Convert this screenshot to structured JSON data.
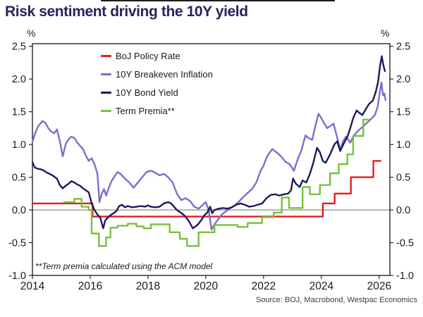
{
  "page": {
    "title": "Risk sentiment driving the 10Y yield",
    "footnote": "**Term premia calculated using the ACM model",
    "source": "Source: BOJ, Macrobond, Westpac Economics"
  },
  "colors": {
    "title": "#29235c",
    "boj_policy_rate": "#e01f1f",
    "breakeven_inflation": "#7b6fcb",
    "bond_yield": "#1f1a5e",
    "term_premia": "#78c03c",
    "zero_line": "#7f7f7f",
    "frame": "#000000",
    "tick_text": "#1a1a1a"
  },
  "chart_data": {
    "type": "line",
    "title": "Risk sentiment driving the 10Y yield",
    "xlabel": "",
    "ylabel": "%",
    "y_unit_left": "%",
    "y_unit_right": "%",
    "x_range": [
      2014,
      2026.37
    ],
    "y_range": [
      -1.0,
      2.54
    ],
    "x_ticks": [
      2014,
      2016,
      2018,
      2020,
      2022,
      2024,
      2026
    ],
    "y_ticks": [
      -1.0,
      -0.5,
      0.0,
      0.5,
      1.0,
      1.5,
      2.0,
      2.5
    ],
    "grid": false,
    "zero_line": 0,
    "legend_position": "top-left-inside",
    "annotations": [
      "**Term premia calculated using the ACM model"
    ],
    "series": [
      {
        "name": "BoJ Policy Rate",
        "color": "#e01f1f",
        "step": true,
        "points": [
          [
            2014.0,
            0.1
          ],
          [
            2016.08,
            -0.1
          ],
          [
            2024.05,
            0.1
          ],
          [
            2024.46,
            0.25
          ],
          [
            2025.02,
            0.5
          ],
          [
            2025.8,
            0.75
          ],
          [
            2026.05,
            0.75
          ]
        ]
      },
      {
        "name": "10Y Breakeven Inflation",
        "color": "#7b6fcb",
        "step": false,
        "points": [
          [
            2014.0,
            1.04
          ],
          [
            2014.1,
            1.18
          ],
          [
            2014.2,
            1.28
          ],
          [
            2014.35,
            1.36
          ],
          [
            2014.45,
            1.33
          ],
          [
            2014.55,
            1.25
          ],
          [
            2014.65,
            1.2
          ],
          [
            2014.75,
            1.17
          ],
          [
            2014.85,
            1.23
          ],
          [
            2014.95,
            1.05
          ],
          [
            2015.05,
            0.82
          ],
          [
            2015.15,
            1.0
          ],
          [
            2015.25,
            1.08
          ],
          [
            2015.35,
            1.12
          ],
          [
            2015.45,
            1.1
          ],
          [
            2015.55,
            1.03
          ],
          [
            2015.65,
            0.98
          ],
          [
            2015.75,
            0.93
          ],
          [
            2015.85,
            0.83
          ],
          [
            2015.95,
            0.75
          ],
          [
            2016.05,
            0.79
          ],
          [
            2016.15,
            0.7
          ],
          [
            2016.25,
            0.55
          ],
          [
            2016.32,
            0.12
          ],
          [
            2016.4,
            0.25
          ],
          [
            2016.48,
            0.32
          ],
          [
            2016.55,
            0.22
          ],
          [
            2016.65,
            0.35
          ],
          [
            2016.75,
            0.45
          ],
          [
            2016.85,
            0.52
          ],
          [
            2016.95,
            0.58
          ],
          [
            2017.05,
            0.55
          ],
          [
            2017.2,
            0.48
          ],
          [
            2017.35,
            0.42
          ],
          [
            2017.5,
            0.34
          ],
          [
            2017.65,
            0.42
          ],
          [
            2017.8,
            0.5
          ],
          [
            2017.95,
            0.58
          ],
          [
            2018.1,
            0.6
          ],
          [
            2018.25,
            0.57
          ],
          [
            2018.4,
            0.53
          ],
          [
            2018.55,
            0.55
          ],
          [
            2018.7,
            0.5
          ],
          [
            2018.85,
            0.42
          ],
          [
            2019.0,
            0.25
          ],
          [
            2019.15,
            0.15
          ],
          [
            2019.3,
            0.18
          ],
          [
            2019.45,
            0.14
          ],
          [
            2019.6,
            0.05
          ],
          [
            2019.75,
            0.02
          ],
          [
            2019.9,
            0.08
          ],
          [
            2020.0,
            0.12
          ],
          [
            2020.1,
            0.0
          ],
          [
            2020.2,
            -0.3
          ],
          [
            2020.3,
            -0.22
          ],
          [
            2020.4,
            -0.16
          ],
          [
            2020.55,
            -0.07
          ],
          [
            2020.7,
            -0.02
          ],
          [
            2020.85,
            0.03
          ],
          [
            2021.0,
            0.07
          ],
          [
            2021.15,
            0.13
          ],
          [
            2021.3,
            0.2
          ],
          [
            2021.45,
            0.26
          ],
          [
            2021.6,
            0.32
          ],
          [
            2021.75,
            0.42
          ],
          [
            2021.9,
            0.6
          ],
          [
            2022.0,
            0.68
          ],
          [
            2022.1,
            0.8
          ],
          [
            2022.2,
            0.87
          ],
          [
            2022.3,
            0.93
          ],
          [
            2022.45,
            0.88
          ],
          [
            2022.6,
            0.82
          ],
          [
            2022.75,
            0.74
          ],
          [
            2022.9,
            0.7
          ],
          [
            2023.05,
            0.6
          ],
          [
            2023.2,
            0.8
          ],
          [
            2023.3,
            0.9
          ],
          [
            2023.45,
            1.14
          ],
          [
            2023.55,
            1.1
          ],
          [
            2023.68,
            1.07
          ],
          [
            2023.8,
            1.3
          ],
          [
            2023.9,
            1.47
          ],
          [
            2024.0,
            1.4
          ],
          [
            2024.1,
            1.32
          ],
          [
            2024.2,
            1.25
          ],
          [
            2024.3,
            1.28
          ],
          [
            2024.42,
            1.32
          ],
          [
            2024.55,
            1.1
          ],
          [
            2024.65,
            0.92
          ],
          [
            2024.75,
            1.05
          ],
          [
            2024.85,
            1.12
          ],
          [
            2025.0,
            1.03
          ],
          [
            2025.1,
            1.12
          ],
          [
            2025.25,
            1.2
          ],
          [
            2025.4,
            1.26
          ],
          [
            2025.55,
            1.32
          ],
          [
            2025.7,
            1.38
          ],
          [
            2025.85,
            1.45
          ],
          [
            2025.95,
            1.58
          ],
          [
            2026.02,
            1.8
          ],
          [
            2026.08,
            1.95
          ],
          [
            2026.13,
            1.75
          ],
          [
            2026.18,
            1.78
          ],
          [
            2026.22,
            1.68
          ]
        ]
      },
      {
        "name": "10Y Bond Yield",
        "color": "#1f1a5e",
        "step": false,
        "points": [
          [
            2014.0,
            0.73
          ],
          [
            2014.08,
            0.65
          ],
          [
            2014.18,
            0.63
          ],
          [
            2014.3,
            0.62
          ],
          [
            2014.4,
            0.6
          ],
          [
            2014.5,
            0.57
          ],
          [
            2014.6,
            0.55
          ],
          [
            2014.72,
            0.52
          ],
          [
            2014.85,
            0.48
          ],
          [
            2014.95,
            0.38
          ],
          [
            2015.05,
            0.33
          ],
          [
            2015.15,
            0.37
          ],
          [
            2015.25,
            0.4
          ],
          [
            2015.35,
            0.44
          ],
          [
            2015.45,
            0.42
          ],
          [
            2015.55,
            0.39
          ],
          [
            2015.65,
            0.37
          ],
          [
            2015.75,
            0.33
          ],
          [
            2015.85,
            0.3
          ],
          [
            2015.95,
            0.27
          ],
          [
            2016.05,
            0.1
          ],
          [
            2016.15,
            0.0
          ],
          [
            2016.25,
            -0.07
          ],
          [
            2016.35,
            -0.12
          ],
          [
            2016.45,
            -0.28
          ],
          [
            2016.52,
            -0.16
          ],
          [
            2016.6,
            -0.12
          ],
          [
            2016.7,
            -0.08
          ],
          [
            2016.8,
            -0.05
          ],
          [
            2016.9,
            -0.02
          ],
          [
            2017.0,
            0.06
          ],
          [
            2017.1,
            0.08
          ],
          [
            2017.2,
            0.04
          ],
          [
            2017.3,
            0.06
          ],
          [
            2017.45,
            0.04
          ],
          [
            2017.6,
            0.05
          ],
          [
            2017.75,
            0.06
          ],
          [
            2017.9,
            0.05
          ],
          [
            2018.0,
            0.07
          ],
          [
            2018.1,
            0.05
          ],
          [
            2018.25,
            0.04
          ],
          [
            2018.4,
            0.05
          ],
          [
            2018.55,
            0.1
          ],
          [
            2018.7,
            0.12
          ],
          [
            2018.8,
            0.1
          ],
          [
            2018.9,
            0.05
          ],
          [
            2019.0,
            0.0
          ],
          [
            2019.1,
            -0.03
          ],
          [
            2019.25,
            -0.08
          ],
          [
            2019.4,
            -0.16
          ],
          [
            2019.55,
            -0.28
          ],
          [
            2019.65,
            -0.25
          ],
          [
            2019.75,
            -0.21
          ],
          [
            2019.85,
            -0.15
          ],
          [
            2019.95,
            -0.08
          ],
          [
            2020.05,
            -0.04
          ],
          [
            2020.15,
            0.05
          ],
          [
            2020.22,
            -0.05
          ],
          [
            2020.3,
            0.0
          ],
          [
            2020.45,
            0.02
          ],
          [
            2020.6,
            0.03
          ],
          [
            2020.75,
            0.02
          ],
          [
            2020.9,
            0.04
          ],
          [
            2021.05,
            0.08
          ],
          [
            2021.2,
            0.1
          ],
          [
            2021.35,
            0.08
          ],
          [
            2021.5,
            0.05
          ],
          [
            2021.65,
            0.06
          ],
          [
            2021.8,
            0.08
          ],
          [
            2021.95,
            0.1
          ],
          [
            2022.1,
            0.18
          ],
          [
            2022.25,
            0.23
          ],
          [
            2022.4,
            0.24
          ],
          [
            2022.55,
            0.22
          ],
          [
            2022.7,
            0.24
          ],
          [
            2022.85,
            0.25
          ],
          [
            2022.95,
            0.3
          ],
          [
            2023.02,
            0.48
          ],
          [
            2023.12,
            0.4
          ],
          [
            2023.25,
            0.35
          ],
          [
            2023.35,
            0.45
          ],
          [
            2023.48,
            0.42
          ],
          [
            2023.6,
            0.55
          ],
          [
            2023.72,
            0.72
          ],
          [
            2023.85,
            0.95
          ],
          [
            2023.95,
            0.88
          ],
          [
            2024.05,
            0.75
          ],
          [
            2024.15,
            0.72
          ],
          [
            2024.3,
            0.85
          ],
          [
            2024.45,
            1.0
          ],
          [
            2024.55,
            1.05
          ],
          [
            2024.65,
            0.9
          ],
          [
            2024.78,
            1.02
          ],
          [
            2024.9,
            1.12
          ],
          [
            2025.0,
            1.25
          ],
          [
            2025.1,
            1.4
          ],
          [
            2025.22,
            1.52
          ],
          [
            2025.32,
            1.48
          ],
          [
            2025.42,
            1.45
          ],
          [
            2025.55,
            1.55
          ],
          [
            2025.65,
            1.62
          ],
          [
            2025.78,
            1.67
          ],
          [
            2025.88,
            1.8
          ],
          [
            2025.96,
            1.95
          ],
          [
            2026.03,
            2.2
          ],
          [
            2026.09,
            2.35
          ],
          [
            2026.14,
            2.22
          ],
          [
            2026.2,
            2.12
          ]
        ]
      },
      {
        "name": "Term Premia**",
        "color": "#78c03c",
        "step": true,
        "points": [
          [
            2015.1,
            0.12
          ],
          [
            2015.45,
            0.17
          ],
          [
            2015.7,
            0.05
          ],
          [
            2015.95,
            0.0
          ],
          [
            2016.05,
            -0.36
          ],
          [
            2016.3,
            -0.55
          ],
          [
            2016.55,
            -0.42
          ],
          [
            2016.7,
            -0.27
          ],
          [
            2016.95,
            -0.24
          ],
          [
            2017.3,
            -0.21
          ],
          [
            2017.6,
            -0.25
          ],
          [
            2017.85,
            -0.28
          ],
          [
            2018.1,
            -0.22
          ],
          [
            2018.75,
            -0.34
          ],
          [
            2019.1,
            -0.44
          ],
          [
            2019.35,
            -0.55
          ],
          [
            2019.75,
            -0.34
          ],
          [
            2020.3,
            -0.23
          ],
          [
            2021.1,
            -0.26
          ],
          [
            2021.45,
            -0.2
          ],
          [
            2021.95,
            -0.11
          ],
          [
            2022.35,
            -0.04
          ],
          [
            2022.63,
            0.19
          ],
          [
            2022.88,
            0.03
          ],
          [
            2023.35,
            0.35
          ],
          [
            2023.6,
            0.24
          ],
          [
            2023.95,
            0.38
          ],
          [
            2024.3,
            0.56
          ],
          [
            2024.6,
            0.7
          ],
          [
            2024.9,
            0.85
          ],
          [
            2025.1,
            1.13
          ],
          [
            2025.45,
            1.38
          ],
          [
            2025.65,
            1.38
          ]
        ]
      }
    ]
  }
}
